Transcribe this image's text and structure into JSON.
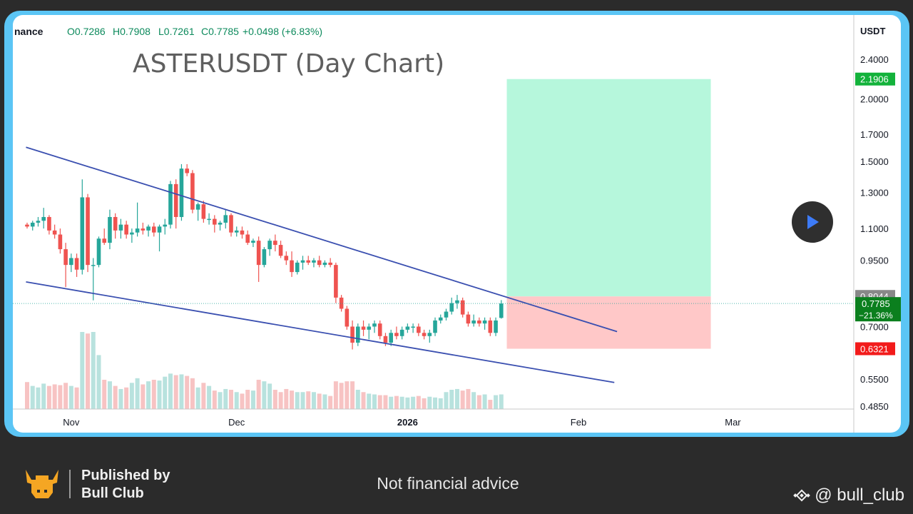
{
  "chart_data": {
    "type": "candlestick",
    "title": "ASTERUSDT (Day Chart)",
    "ohlc_header": {
      "source": "nance",
      "open": "O0.7286",
      "high": "H0.7908",
      "low": "L0.7261",
      "close": "C0.7785",
      "change": "+0.0498 (+6.83%)"
    },
    "currency_label": "USDT",
    "y_scale": "log",
    "y_ticks": [
      "2.4000",
      "2.0000",
      "1.7000",
      "1.5000",
      "1.3000",
      "1.1000",
      "0.9500",
      "0.7000",
      "0.5500",
      "0.4850"
    ],
    "x_ticks": [
      "Nov",
      "Dec",
      "2026",
      "Feb",
      "Mar"
    ],
    "price_labels": {
      "target": "2.1906",
      "entry": "0.8044",
      "current": "0.7785",
      "current_change": "−21.36%",
      "stop": "0.6321"
    },
    "candles": [
      [
        1.12,
        1.13,
        1.1,
        1.11
      ],
      [
        1.11,
        1.14,
        1.09,
        1.13
      ],
      [
        1.13,
        1.16,
        1.11,
        1.14
      ],
      [
        1.14,
        1.21,
        1.1,
        1.16
      ],
      [
        1.16,
        1.17,
        1.07,
        1.09
      ],
      [
        1.09,
        1.12,
        1.05,
        1.07
      ],
      [
        1.07,
        1.1,
        0.98,
        1.0
      ],
      [
        1.0,
        1.03,
        0.84,
        0.93
      ],
      [
        0.93,
        0.98,
        0.9,
        0.96
      ],
      [
        0.96,
        0.98,
        0.88,
        0.91
      ],
      [
        0.91,
        1.38,
        0.89,
        1.27
      ],
      [
        1.27,
        1.29,
        0.9,
        0.93
      ],
      [
        0.93,
        0.96,
        0.79,
        0.93
      ],
      [
        0.93,
        1.06,
        0.92,
        1.05
      ],
      [
        1.05,
        1.1,
        1.02,
        1.03
      ],
      [
        1.03,
        1.2,
        1.0,
        1.16
      ],
      [
        1.16,
        1.18,
        1.05,
        1.09
      ],
      [
        1.09,
        1.15,
        1.05,
        1.12
      ],
      [
        1.12,
        1.14,
        1.05,
        1.07
      ],
      [
        1.07,
        1.1,
        1.03,
        1.08
      ],
      [
        1.08,
        1.24,
        1.06,
        1.1
      ],
      [
        1.1,
        1.13,
        1.07,
        1.09
      ],
      [
        1.09,
        1.12,
        1.06,
        1.11
      ],
      [
        1.11,
        1.13,
        1.06,
        1.08
      ],
      [
        1.08,
        1.12,
        0.99,
        1.11
      ],
      [
        1.11,
        1.15,
        1.07,
        1.12
      ],
      [
        1.12,
        1.37,
        1.1,
        1.35
      ],
      [
        1.35,
        1.38,
        1.1,
        1.16
      ],
      [
        1.16,
        1.48,
        1.14,
        1.45
      ],
      [
        1.45,
        1.48,
        1.4,
        1.42
      ],
      [
        1.42,
        1.44,
        1.18,
        1.2
      ],
      [
        1.2,
        1.24,
        1.14,
        1.23
      ],
      [
        1.23,
        1.25,
        1.13,
        1.15
      ],
      [
        1.15,
        1.18,
        1.12,
        1.15
      ],
      [
        1.15,
        1.17,
        1.08,
        1.12
      ],
      [
        1.12,
        1.14,
        1.09,
        1.13
      ],
      [
        1.13,
        1.2,
        1.1,
        1.17
      ],
      [
        1.17,
        1.18,
        1.06,
        1.08
      ],
      [
        1.08,
        1.11,
        1.06,
        1.09
      ],
      [
        1.09,
        1.11,
        1.05,
        1.07
      ],
      [
        1.07,
        1.09,
        1.02,
        1.03
      ],
      [
        1.03,
        1.05,
        1.01,
        1.04
      ],
      [
        1.04,
        1.06,
        0.86,
        0.93
      ],
      [
        0.93,
        1.01,
        0.92,
        1.0
      ],
      [
        1.0,
        1.05,
        0.97,
        1.04
      ],
      [
        1.04,
        1.07,
        0.99,
        1.02
      ],
      [
        1.02,
        1.04,
        0.96,
        0.97
      ],
      [
        0.97,
        0.99,
        0.93,
        0.95
      ],
      [
        0.95,
        0.99,
        0.88,
        0.9
      ],
      [
        0.9,
        0.95,
        0.89,
        0.94
      ],
      [
        0.94,
        0.97,
        0.91,
        0.95
      ],
      [
        0.95,
        0.97,
        0.93,
        0.94
      ],
      [
        0.94,
        0.96,
        0.92,
        0.95
      ],
      [
        0.95,
        0.97,
        0.92,
        0.93
      ],
      [
        0.93,
        0.95,
        0.92,
        0.94
      ],
      [
        0.94,
        0.96,
        0.92,
        0.93
      ],
      [
        0.93,
        0.94,
        0.78,
        0.8
      ],
      [
        0.8,
        0.81,
        0.75,
        0.76
      ],
      [
        0.76,
        0.77,
        0.69,
        0.7
      ],
      [
        0.7,
        0.72,
        0.63,
        0.65
      ],
      [
        0.65,
        0.71,
        0.64,
        0.7
      ],
      [
        0.7,
        0.72,
        0.67,
        0.69
      ],
      [
        0.69,
        0.71,
        0.66,
        0.7
      ],
      [
        0.7,
        0.72,
        0.68,
        0.71
      ],
      [
        0.71,
        0.72,
        0.66,
        0.67
      ],
      [
        0.67,
        0.68,
        0.64,
        0.65
      ],
      [
        0.65,
        0.69,
        0.64,
        0.68
      ],
      [
        0.68,
        0.7,
        0.66,
        0.67
      ],
      [
        0.67,
        0.7,
        0.66,
        0.69
      ],
      [
        0.69,
        0.71,
        0.68,
        0.7
      ],
      [
        0.7,
        0.71,
        0.68,
        0.7
      ],
      [
        0.7,
        0.71,
        0.67,
        0.68
      ],
      [
        0.68,
        0.69,
        0.66,
        0.67
      ],
      [
        0.67,
        0.69,
        0.65,
        0.68
      ],
      [
        0.68,
        0.73,
        0.67,
        0.72
      ],
      [
        0.72,
        0.74,
        0.71,
        0.73
      ],
      [
        0.73,
        0.76,
        0.72,
        0.75
      ],
      [
        0.75,
        0.8,
        0.74,
        0.78
      ],
      [
        0.78,
        0.81,
        0.76,
        0.79
      ],
      [
        0.79,
        0.8,
        0.73,
        0.74
      ],
      [
        0.74,
        0.75,
        0.7,
        0.71
      ],
      [
        0.71,
        0.74,
        0.7,
        0.72
      ],
      [
        0.72,
        0.73,
        0.7,
        0.71
      ],
      [
        0.71,
        0.73,
        0.69,
        0.72
      ],
      [
        0.72,
        0.73,
        0.67,
        0.68
      ],
      [
        0.68,
        0.73,
        0.67,
        0.72
      ],
      [
        0.7286,
        0.7908,
        0.7261,
        0.7785
      ]
    ],
    "volumes": [
      0.35,
      0.3,
      0.28,
      0.33,
      0.3,
      0.32,
      0.31,
      0.34,
      0.3,
      0.28,
      1.0,
      0.98,
      1.0,
      0.7,
      0.38,
      0.36,
      0.3,
      0.26,
      0.28,
      0.34,
      0.4,
      0.32,
      0.36,
      0.38,
      0.37,
      0.42,
      0.46,
      0.44,
      0.45,
      0.43,
      0.4,
      0.28,
      0.34,
      0.3,
      0.24,
      0.22,
      0.26,
      0.25,
      0.22,
      0.2,
      0.25,
      0.24,
      0.38,
      0.36,
      0.33,
      0.25,
      0.22,
      0.26,
      0.24,
      0.22,
      0.22,
      0.23,
      0.22,
      0.2,
      0.19,
      0.17,
      0.36,
      0.34,
      0.36,
      0.36,
      0.25,
      0.22,
      0.2,
      0.19,
      0.18,
      0.18,
      0.16,
      0.17,
      0.16,
      0.15,
      0.16,
      0.17,
      0.14,
      0.16,
      0.15,
      0.14,
      0.22,
      0.25,
      0.26,
      0.24,
      0.26,
      0.22,
      0.18,
      0.19,
      0.12,
      0.18,
      0.19
    ],
    "trendlines": [
      {
        "name": "upper",
        "from_index": -0.2,
        "from_price": 1.6,
        "to_index": 107,
        "to_price": 0.684
      },
      {
        "name": "lower",
        "from_index": -0.2,
        "from_price": 0.86,
        "to_index": 106.5,
        "to_price": 0.541
      }
    ],
    "position": {
      "from_index": 87,
      "to_index": 124,
      "target": 2.1906,
      "entry": 0.8044,
      "stop": 0.6321
    },
    "grid": false
  },
  "colors": {
    "up": "#26a69a",
    "down": "#ef5350",
    "trendline": "#3a4fb0",
    "target_zone": "#b6f7dc",
    "stop_zone": "#ffc8c8",
    "frame": "#5bc5f5"
  },
  "footer": {
    "published_line1": "Published by",
    "published_line2": "Bull Club",
    "disclaimer": "Not financial advice",
    "handle": "@ bull_club"
  }
}
